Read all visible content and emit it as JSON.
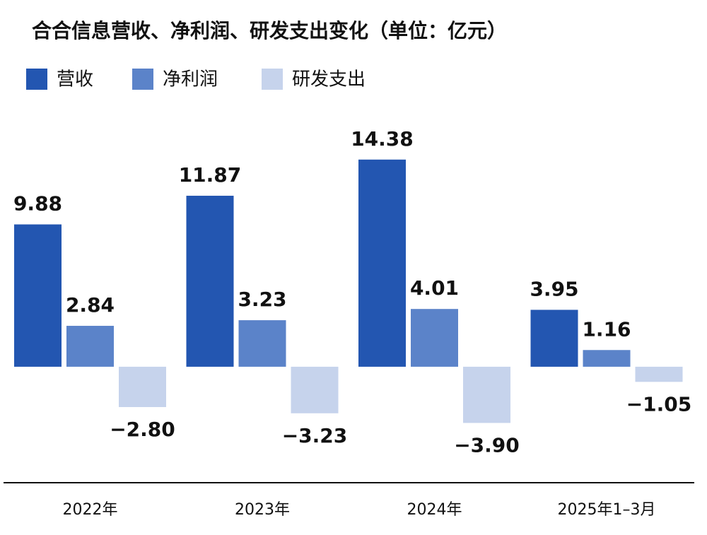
{
  "chart_data": {
    "type": "bar",
    "title": "合合信息营收、净利润、研发支出变化（单位：亿元）",
    "categories": [
      "2022年",
      "2023年",
      "2024年",
      "2025年1–3月"
    ],
    "series": [
      {
        "name": "营收",
        "color": "#2356b1",
        "values": [
          9.88,
          11.87,
          14.38,
          3.95
        ],
        "value_labels": [
          "9.88",
          "11.87",
          "14.38",
          "3.95"
        ]
      },
      {
        "name": "净利润",
        "color": "#5b83c9",
        "values": [
          2.84,
          3.23,
          4.01,
          1.16
        ],
        "value_labels": [
          "2.84",
          "3.23",
          "4.01",
          "1.16"
        ]
      },
      {
        "name": "研发支出",
        "color": "#c6d3ec",
        "values": [
          -2.8,
          -3.23,
          -3.9,
          -1.05
        ],
        "value_labels": [
          "−2.80",
          "−3.23",
          "−3.90",
          "−1.05"
        ]
      }
    ],
    "ylim": [
      -8,
      18
    ]
  }
}
